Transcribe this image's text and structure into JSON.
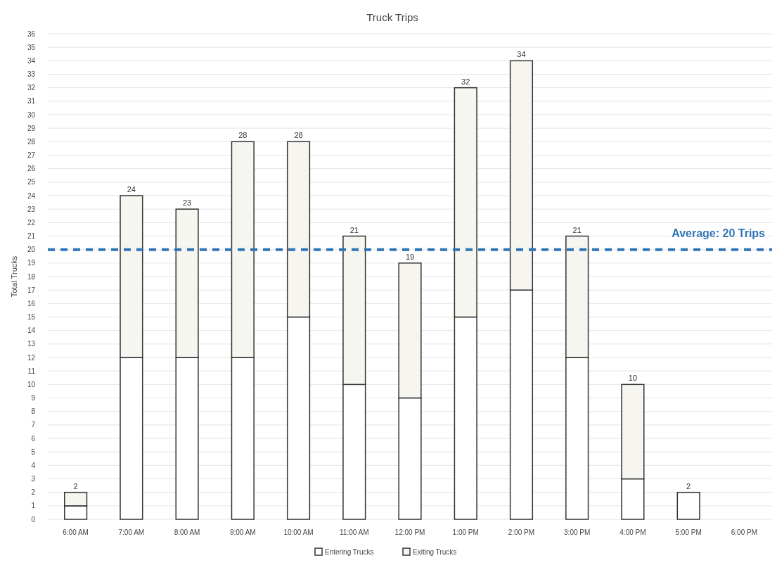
{
  "chart_data": {
    "type": "bar",
    "title": "Truck Trips",
    "ylabel": "Total Trucks",
    "categories": [
      "6:00 AM",
      "7:00 AM",
      "8:00 AM",
      "9:00 AM",
      "10:00 AM",
      "11:00 AM",
      "12:00 PM",
      "1:00 PM",
      "2:00 PM",
      "3:00 PM",
      "4:00 PM",
      "5:00 PM",
      "6:00 PM"
    ],
    "stacked": true,
    "series": [
      {
        "name": "Entering Trucks",
        "color": "#ffffff",
        "values": [
          1,
          12,
          12,
          12,
          15,
          10,
          9,
          15,
          17,
          12,
          3,
          2,
          null
        ]
      },
      {
        "name": "Exiting Trucks",
        "color": "#f6f5f0",
        "values": [
          1,
          12,
          11,
          16,
          13,
          11,
          10,
          17,
          17,
          9,
          7,
          0,
          null
        ]
      }
    ],
    "totals": [
      "2",
      "24",
      "23",
      "28",
      "28",
      "21",
      "19",
      "32",
      "34",
      "21",
      "10",
      "2",
      null
    ],
    "ylim": [
      0,
      36
    ],
    "yticks": [
      0,
      1,
      2,
      3,
      4,
      5,
      6,
      7,
      8,
      9,
      10,
      11,
      12,
      13,
      14,
      15,
      16,
      17,
      18,
      19,
      20,
      21,
      22,
      23,
      24,
      25,
      26,
      27,
      28,
      29,
      30,
      31,
      32,
      33,
      34,
      35,
      36
    ],
    "grid": "y",
    "legend": "bottom",
    "ref_lines": [
      {
        "axis": "y",
        "value": 20,
        "label": "Average: 20 Trips",
        "color": "#2e75b6",
        "line_style": "dashed"
      }
    ]
  }
}
